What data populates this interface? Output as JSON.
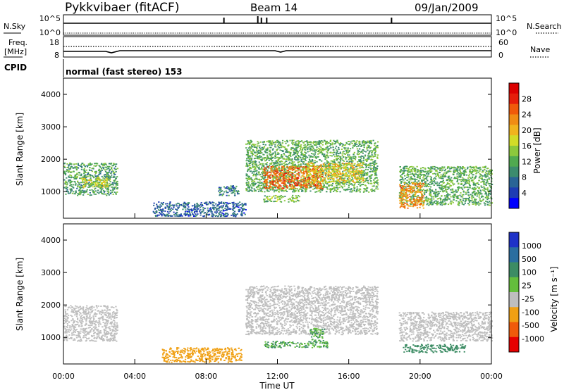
{
  "header": {
    "station": "Pykkvibaer (fitACF)",
    "beam": "Beam 14",
    "date": "09/Jan/2009"
  },
  "nsky_panel": {
    "left_label": "N.Sky",
    "left_ticks": [
      "10^5",
      "10^0"
    ],
    "right_label": "N.Search",
    "right_ticks": [
      "10^5",
      "10^0"
    ],
    "spike_times_h": [
      9.0,
      10.9,
      11.1,
      11.4,
      18.4
    ]
  },
  "freq_panel": {
    "left_label_line1": "Freq.",
    "left_label_line2": "[MHz]",
    "left_ticks": [
      "18",
      "8"
    ],
    "right_label": "Nave",
    "right_ticks": [
      "60",
      "0"
    ]
  },
  "cpid": {
    "label": "CPID",
    "program": "normal (fast stereo) 153"
  },
  "chart_data": [
    {
      "type": "heatmap",
      "name": "Power",
      "x": {
        "label": "",
        "range": [
          0,
          24
        ],
        "unit": "hour UT"
      },
      "y": {
        "label": "Slant Range [km]",
        "range": [
          180,
          4500
        ],
        "ticks": [
          "1000",
          "2000",
          "3000",
          "4000"
        ]
      },
      "colorbar": {
        "label": "Power [dB]",
        "ticks": [
          "28",
          "24",
          "20",
          "16",
          "12",
          "8",
          "4"
        ],
        "range": [
          0,
          30
        ],
        "colors": [
          "#0000ff",
          "#1e3cb4",
          "#2a6496",
          "#3c8c6e",
          "#50aa50",
          "#8cc83c",
          "#d2dc28",
          "#f0b41e",
          "#f08c14",
          "#f05a0a",
          "#e61e0a",
          "#dc0000"
        ]
      },
      "regions": [
        {
          "t": [
            0.0,
            3.0
          ],
          "r": [
            900,
            1900
          ],
          "level": 10
        },
        {
          "t": [
            1.0,
            2.6
          ],
          "r": [
            1150,
            1450
          ],
          "level": 16
        },
        {
          "t": [
            5.0,
            10.2
          ],
          "r": [
            250,
            700
          ],
          "level": 5
        },
        {
          "t": [
            8.6,
            9.8
          ],
          "r": [
            900,
            1200
          ],
          "level": 7
        },
        {
          "t": [
            10.2,
            17.6
          ],
          "r": [
            1000,
            2600
          ],
          "level": 11
        },
        {
          "t": [
            11.2,
            14.5
          ],
          "r": [
            1100,
            1800
          ],
          "level": 24
        },
        {
          "t": [
            13.6,
            16.8
          ],
          "r": [
            1300,
            1900
          ],
          "level": 18
        },
        {
          "t": [
            11.2,
            13.2
          ],
          "r": [
            700,
            900
          ],
          "level": 12
        },
        {
          "t": [
            18.8,
            24.0
          ],
          "r": [
            600,
            1800
          ],
          "level": 11
        },
        {
          "t": [
            18.8,
            20.2
          ],
          "r": [
            500,
            1300
          ],
          "level": 22
        }
      ]
    },
    {
      "type": "heatmap",
      "name": "Velocity",
      "x": {
        "label": "Time UT",
        "range": [
          0,
          24
        ],
        "ticks": [
          "00:00",
          "04:00",
          "08:00",
          "12:00",
          "16:00",
          "20:00",
          "00:00"
        ]
      },
      "y": {
        "label": "Slant Range [km]",
        "range": [
          180,
          4500
        ],
        "ticks": [
          "1000",
          "2000",
          "3000",
          "4000"
        ]
      },
      "colorbar": {
        "label": "Velocity [m s⁻¹]",
        "ticks": [
          "1000",
          "500",
          "100",
          "25",
          "-25",
          "-100",
          "-500",
          "-1000"
        ],
        "colors": [
          "#1e32c8",
          "#2a6ea0",
          "#3c8c64",
          "#64be3c",
          "#bebebe",
          "#f0a014",
          "#f05a0a",
          "#e60000"
        ]
      },
      "regions": [
        {
          "t": [
            0.0,
            3.0
          ],
          "r": [
            900,
            2000
          ],
          "level": 0
        },
        {
          "t": [
            5.5,
            10.0
          ],
          "r": [
            250,
            700
          ],
          "level": -60
        },
        {
          "t": [
            10.2,
            17.6
          ],
          "r": [
            1100,
            2600
          ],
          "level": 0
        },
        {
          "t": [
            11.2,
            14.8
          ],
          "r": [
            700,
            900
          ],
          "level": 60
        },
        {
          "t": [
            13.8,
            14.6
          ],
          "r": [
            900,
            1300
          ],
          "level": 60
        },
        {
          "t": [
            18.8,
            24.0
          ],
          "r": [
            900,
            1800
          ],
          "level": 0
        },
        {
          "t": [
            19.0,
            22.5
          ],
          "r": [
            550,
            800
          ],
          "level": 200
        }
      ]
    }
  ]
}
